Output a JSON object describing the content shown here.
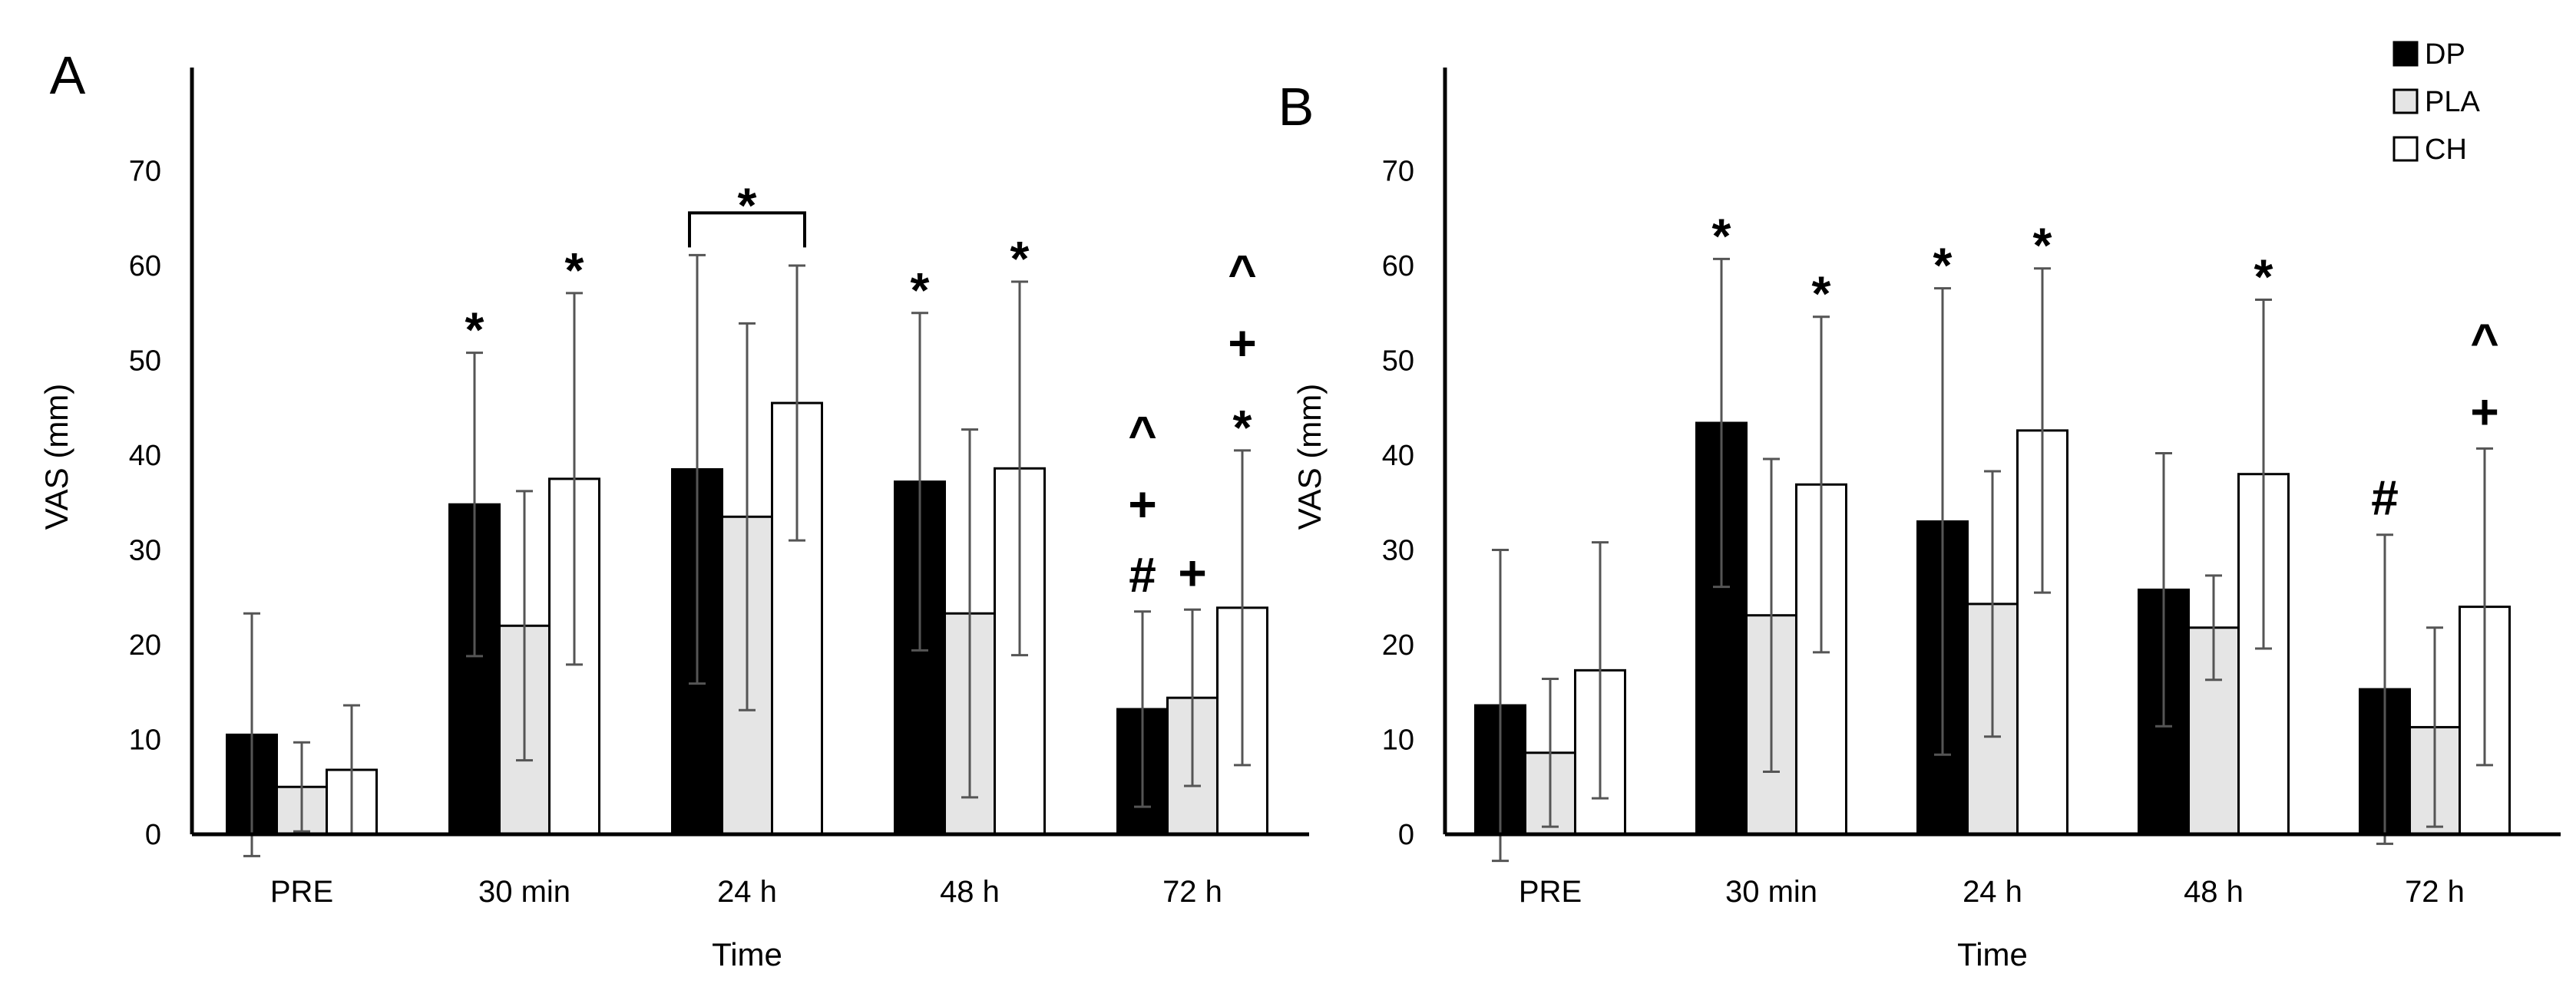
{
  "chart_data": [
    {
      "type": "bar",
      "panel": "A",
      "categories": [
        "PRE",
        "30 min",
        "24 h",
        "48 h",
        "72 h"
      ],
      "xlabel": "Time",
      "ylabel": "VAS (mm)",
      "ylim": [
        0,
        80
      ],
      "yticks": [
        0,
        10,
        20,
        30,
        40,
        50,
        60,
        70
      ],
      "series": [
        {
          "name": "DP",
          "color": "#000000",
          "values": [
            10.5,
            34.8,
            38.5,
            37.2,
            13.2
          ],
          "errors": [
            12.8,
            16.0,
            22.6,
            17.8,
            10.3
          ]
        },
        {
          "name": "PLA",
          "color": "#e5e5e5",
          "values": [
            5.0,
            22.0,
            33.5,
            23.3,
            14.4
          ],
          "errors": [
            4.7,
            14.2,
            20.4,
            19.4,
            9.3
          ]
        },
        {
          "name": "CH",
          "color": "#ffffff",
          "values": [
            6.8,
            37.5,
            45.5,
            38.6,
            23.9
          ],
          "errors": [
            6.8,
            19.6,
            14.5,
            19.7,
            16.6
          ]
        }
      ],
      "annotations": [
        {
          "text": "*",
          "category": 1,
          "series": 0
        },
        {
          "text": "*",
          "category": 1,
          "series": 2
        },
        {
          "text": "*",
          "category": 2,
          "series": 1,
          "bracket": true
        },
        {
          "text": "*",
          "category": 3,
          "series": 0
        },
        {
          "text": "*",
          "category": 3,
          "series": 2
        },
        {
          "text": "#",
          "category": 4,
          "series": 0,
          "level": 0
        },
        {
          "text": "+",
          "category": 4,
          "series": 0,
          "level": 1
        },
        {
          "text": "^",
          "category": 4,
          "series": 0,
          "level": 2
        },
        {
          "text": "+",
          "category": 4,
          "series": 1,
          "level": 0
        },
        {
          "text": "*",
          "category": 4,
          "series": 2,
          "level": 0
        },
        {
          "text": "+",
          "category": 4,
          "series": 2,
          "level": 1
        },
        {
          "text": "^",
          "category": 4,
          "series": 2,
          "level": 2
        }
      ]
    },
    {
      "type": "bar",
      "panel": "B",
      "categories": [
        "PRE",
        "30 min",
        "24 h",
        "48 h",
        "72 h"
      ],
      "xlabel": "Time",
      "ylabel": "VAS (mm)",
      "ylim": [
        0,
        80
      ],
      "yticks": [
        0,
        10,
        20,
        30,
        40,
        50,
        60,
        70
      ],
      "series": [
        {
          "name": "DP",
          "color": "#000000",
          "values": [
            13.6,
            43.4,
            33.0,
            25.8,
            15.3
          ],
          "errors": [
            16.4,
            17.3,
            24.6,
            14.4,
            16.3
          ]
        },
        {
          "name": "PLA",
          "color": "#e5e5e5",
          "values": [
            8.6,
            23.1,
            24.3,
            21.8,
            11.3
          ],
          "errors": [
            7.8,
            16.5,
            14.0,
            5.5,
            10.5
          ]
        },
        {
          "name": "CH",
          "color": "#ffffff",
          "values": [
            17.3,
            36.9,
            42.6,
            38.0,
            24.0
          ],
          "errors": [
            13.5,
            17.7,
            17.1,
            18.4,
            16.7
          ]
        }
      ],
      "annotations": [
        {
          "text": "*",
          "category": 1,
          "series": 0
        },
        {
          "text": "*",
          "category": 1,
          "series": 2
        },
        {
          "text": "*",
          "category": 2,
          "series": 0
        },
        {
          "text": "*",
          "category": 2,
          "series": 2
        },
        {
          "text": "*",
          "category": 3,
          "series": 2
        },
        {
          "text": "#",
          "category": 4,
          "series": 0,
          "level": 0
        },
        {
          "text": "+",
          "category": 4,
          "series": 2,
          "level": 0
        },
        {
          "text": "^",
          "category": 4,
          "series": 2,
          "level": 1
        }
      ]
    }
  ],
  "legend": {
    "placement": "top-right",
    "items": [
      {
        "label": "DP",
        "color": "#000000"
      },
      {
        "label": "PLA",
        "color": "#e5e5e5"
      },
      {
        "label": "CH",
        "color": "#ffffff"
      }
    ]
  }
}
